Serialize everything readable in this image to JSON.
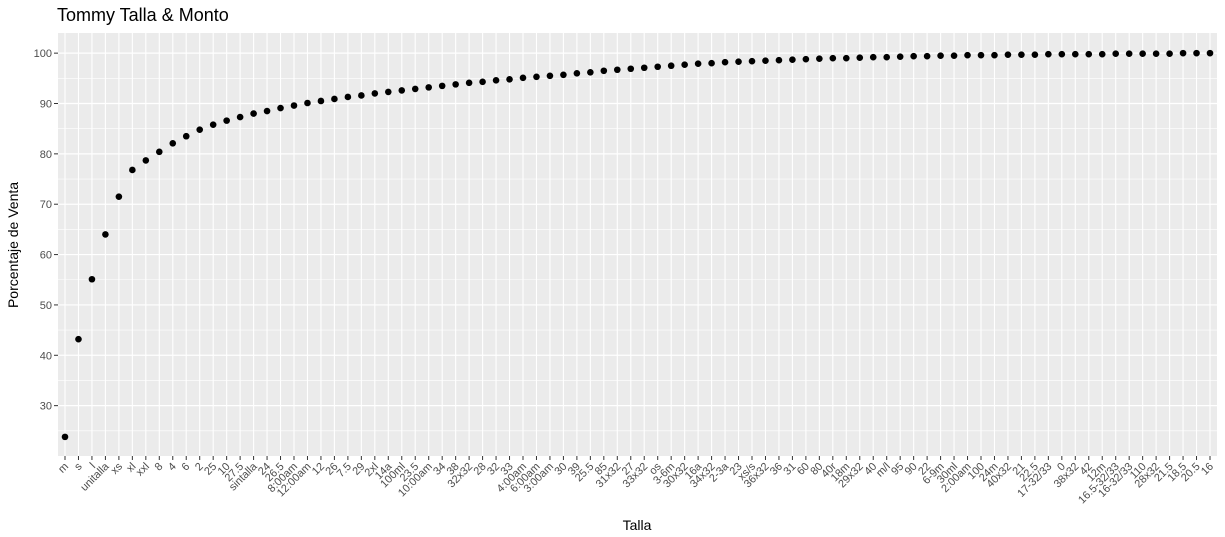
{
  "chart_data": {
    "type": "scatter",
    "title": "Tommy Talla & Monto",
    "xlabel": "Talla",
    "ylabel": "Porcentaje de Venta",
    "ylim": [
      20,
      104
    ],
    "yticks": [
      30,
      40,
      50,
      60,
      70,
      80,
      90,
      100
    ],
    "grid": true,
    "legend": "none",
    "point_color": "#000000",
    "panel_color": "#ebebeb",
    "grid_color": "#ffffff",
    "categories": [
      "m",
      "s",
      "l",
      "unitalla",
      "xs",
      "xl",
      "xxl",
      "8",
      "4",
      "6",
      "2",
      "25",
      "10",
      "27.5",
      "sintalla",
      "24",
      "26.5",
      "8:00am",
      "12:00am",
      "12",
      "26",
      "7.5",
      "29",
      "2xl",
      "14a",
      "100ml",
      "23.5",
      "10:00am",
      "34",
      "38",
      "32x32",
      "28",
      "32",
      "33",
      "4:00am",
      "6:00am",
      "3:00am",
      "30",
      "39",
      "25.5",
      "85",
      "31x32",
      "27",
      "33x32",
      "os",
      "3-6m",
      "30x32",
      "16a",
      "34x32",
      "2-3a",
      "23",
      "xs/s",
      "36x32",
      "36",
      "31",
      "60",
      "80",
      "40r",
      "18m",
      "29x32",
      "40",
      "m/l",
      "95",
      "90",
      "22",
      "6-9m",
      "30ml",
      "2:00am",
      "100",
      "24m",
      "40x32",
      "21",
      "22.5",
      "17-32/33",
      "0",
      "38x32",
      "42",
      "12m",
      "16.5-32/33",
      "16-32/33",
      "110",
      "28x32",
      "21.5",
      "18.5",
      "20.5",
      "16"
    ],
    "values": [
      23.8,
      43.2,
      55.1,
      64.0,
      71.5,
      76.8,
      78.7,
      80.4,
      82.1,
      83.5,
      84.8,
      85.8,
      86.6,
      87.3,
      88.0,
      88.5,
      89.1,
      89.6,
      90.1,
      90.5,
      90.9,
      91.3,
      91.6,
      92.0,
      92.3,
      92.6,
      92.9,
      93.2,
      93.5,
      93.8,
      94.1,
      94.3,
      94.6,
      94.8,
      95.1,
      95.3,
      95.5,
      95.7,
      96.0,
      96.2,
      96.5,
      96.7,
      96.9,
      97.1,
      97.3,
      97.5,
      97.7,
      97.9,
      98.0,
      98.2,
      98.3,
      98.4,
      98.5,
      98.6,
      98.7,
      98.8,
      98.9,
      99.0,
      99.0,
      99.1,
      99.2,
      99.2,
      99.3,
      99.4,
      99.4,
      99.5,
      99.5,
      99.6,
      99.6,
      99.6,
      99.7,
      99.7,
      99.7,
      99.8,
      99.8,
      99.8,
      99.8,
      99.8,
      99.9,
      99.9,
      99.9,
      99.9,
      99.9,
      100.0,
      100.0,
      100.0
    ]
  }
}
